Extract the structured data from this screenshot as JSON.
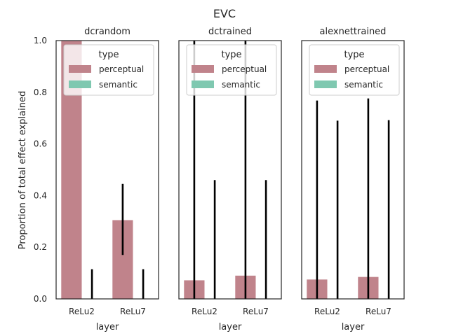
{
  "chart_data": {
    "suptitle": "EVC",
    "type": "bar",
    "ylabel": "Proportion of total effect explained",
    "ylim": [
      0,
      1
    ],
    "yticks": [
      "0.0",
      "0.2",
      "0.4",
      "0.6",
      "0.8",
      "1.0"
    ],
    "legend": {
      "title": "type",
      "placement": "top-right",
      "entries": [
        {
          "label": "perceptual",
          "color": "#c0838b"
        },
        {
          "label": "semantic",
          "color": "#7fc8b0"
        }
      ]
    },
    "panels": [
      {
        "title": "dcrandom",
        "xlabel": "layer",
        "categories": [
          "ReLu2",
          "ReLu7"
        ],
        "series": [
          {
            "name": "perceptual",
            "values": [
              1.0,
              0.305
            ],
            "err_low": [
              1.0,
              0.17
            ],
            "err_high": [
              1.0,
              0.445
            ]
          },
          {
            "name": "semantic",
            "values": [
              0.0,
              0.0
            ],
            "err_low": [
              0.0,
              0.0
            ],
            "err_high": [
              0.115,
              0.115
            ]
          }
        ]
      },
      {
        "title": "dctrained",
        "xlabel": "layer",
        "categories": [
          "ReLu2",
          "ReLu7"
        ],
        "series": [
          {
            "name": "perceptual",
            "values": [
              0.072,
              0.09
            ],
            "err_low": [
              0.0,
              0.0
            ],
            "err_high": [
              1.0,
              1.0
            ]
          },
          {
            "name": "semantic",
            "values": [
              0.0,
              0.0
            ],
            "err_low": [
              0.0,
              0.0
            ],
            "err_high": [
              0.46,
              0.46
            ]
          }
        ]
      },
      {
        "title": "alexnettrained",
        "xlabel": "layer",
        "categories": [
          "ReLu2",
          "ReLu7"
        ],
        "series": [
          {
            "name": "perceptual",
            "values": [
              0.075,
              0.085
            ],
            "err_low": [
              0.0,
              0.0
            ],
            "err_high": [
              0.768,
              0.776
            ]
          },
          {
            "name": "semantic",
            "values": [
              0.0,
              0.0
            ],
            "err_low": [
              0.0,
              0.0
            ],
            "err_high": [
              0.69,
              0.692
            ]
          }
        ]
      }
    ]
  }
}
